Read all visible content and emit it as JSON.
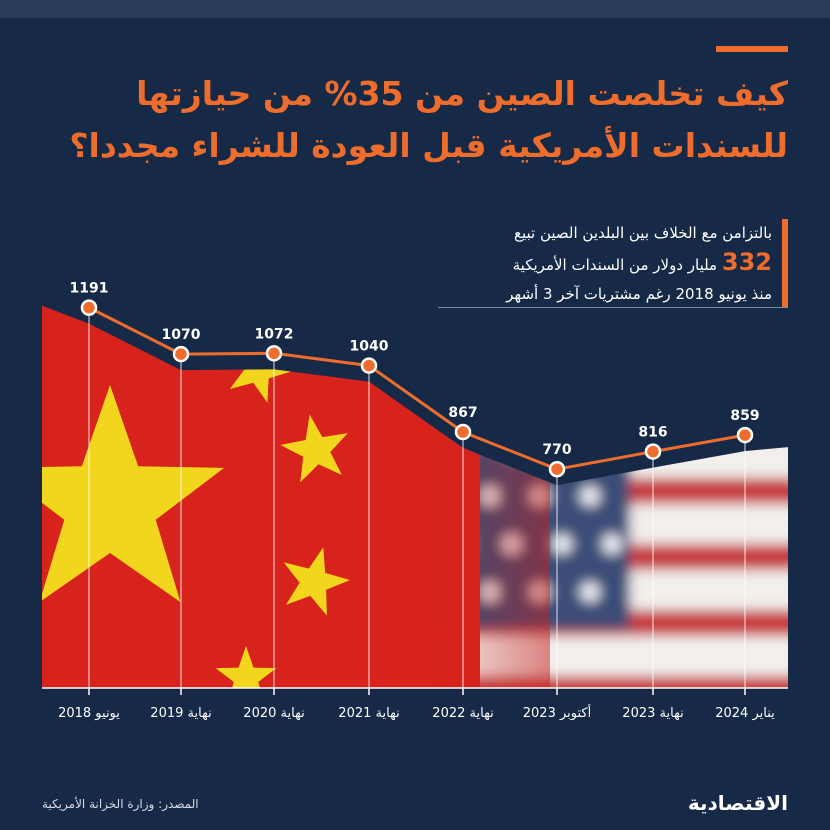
{
  "title": {
    "line1": "كيف تخلصت الصين من 35% من حيازتها",
    "line2": "للسندات الأمريكية قبل العودة للشراء مجددا؟"
  },
  "callout": {
    "line1": "بالتزامن مع الخلاف بين البلدين الصين تبيع",
    "number": "332",
    "line2_rest": "مليار دولار من السندات الأمريكية",
    "line3": "منذ يونيو 2018 رغم مشتريات آخر 3 أشهر"
  },
  "colors": {
    "accent": "#ee6d2c",
    "background": "#162947",
    "china_red": "#d8221c",
    "china_yellow": "#f2d51d"
  },
  "source": "المصدر: وزارة الخزانة الأمريكية",
  "logo": "الاقتصادية",
  "chart_data": {
    "type": "line",
    "categories": [
      "يونيو 2018",
      "نهاية 2019",
      "نهاية 2020",
      "نهاية 2021",
      "نهاية 2022",
      "أكتوبر 2023",
      "نهاية 2023",
      "يناير 2024"
    ],
    "values": [
      1191,
      1070,
      1072,
      1040,
      867,
      770,
      816,
      859
    ],
    "value_labels": [
      "1191",
      "1070",
      "1072",
      "1040",
      "867",
      "770",
      "816",
      "859"
    ],
    "ylim": [
      200,
      1250
    ],
    "grid": false,
    "title": "",
    "xlabel": "",
    "ylabel": ""
  }
}
